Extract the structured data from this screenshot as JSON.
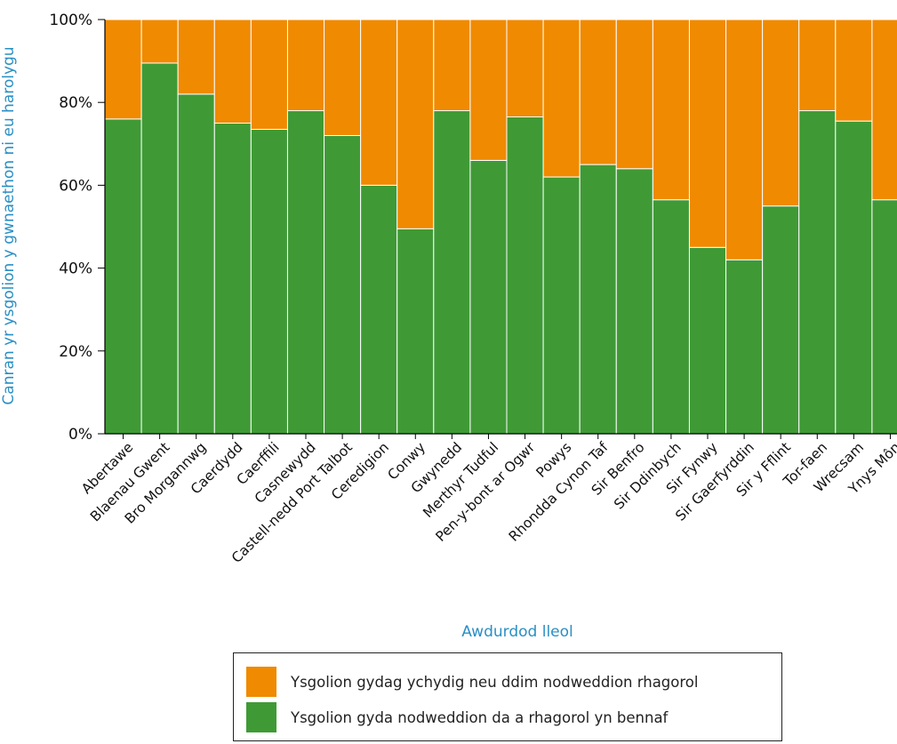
{
  "chart_data": {
    "type": "bar",
    "stacked": true,
    "normalized": true,
    "xlabel": "Awdurdod lleol",
    "ylabel": "Canran yr ysgolion y gwnaethon ni eu harolygu",
    "ylim": [
      0,
      100
    ],
    "yticks": [
      "0%",
      "20%",
      "40%",
      "60%",
      "80%",
      "100%"
    ],
    "categories": [
      "Abertawe",
      "Blaenau Gwent",
      "Bro Morgannwg",
      "Caerdydd",
      "Caerffili",
      "Casnewydd",
      "Castell-nedd Port Talbot",
      "Ceredigion",
      "Conwy",
      "Gwynedd",
      "Merthyr Tudful",
      "Pen-y-bont ar Ogwr",
      "Powys",
      "Rhondda Cynon Taf",
      "Sir Benfro",
      "Sir Ddinbych",
      "Sir Fynwy",
      "Sir Gaerfyrddin",
      "Sir y Fflint",
      "Tor-faen",
      "Wrecsam",
      "Ynys Môn"
    ],
    "series": [
      {
        "name": "Ysgolion gyda nodweddion da a rhagorol yn bennaf",
        "color": "#3f9a36",
        "values": [
          76,
          89.5,
          82,
          75,
          73.5,
          78,
          72,
          60,
          49.5,
          78,
          66,
          76.5,
          62,
          65,
          64,
          56.5,
          45,
          42,
          55,
          78,
          75.5,
          56.5
        ]
      },
      {
        "name": "Ysgolion gydag ychydig neu ddim nodweddion rhagorol",
        "color": "#f08a00",
        "values": [
          24,
          10.5,
          18,
          25,
          26.5,
          22,
          28,
          40,
          50.5,
          22,
          34,
          23.5,
          38,
          35,
          36,
          43.5,
          55,
          58,
          45,
          22,
          24.5,
          43.5
        ]
      }
    ],
    "grid": false,
    "legend_position": "bottom-right"
  },
  "legend": [
    {
      "label": "Ysgolion gydag ychydig neu ddim nodweddion rhagorol",
      "color": "#f08a00"
    },
    {
      "label": "Ysgolion gyda nodweddion da a rhagorol yn bennaf",
      "color": "#3f9a36"
    }
  ],
  "axis_title_color": "#2a8fc4"
}
